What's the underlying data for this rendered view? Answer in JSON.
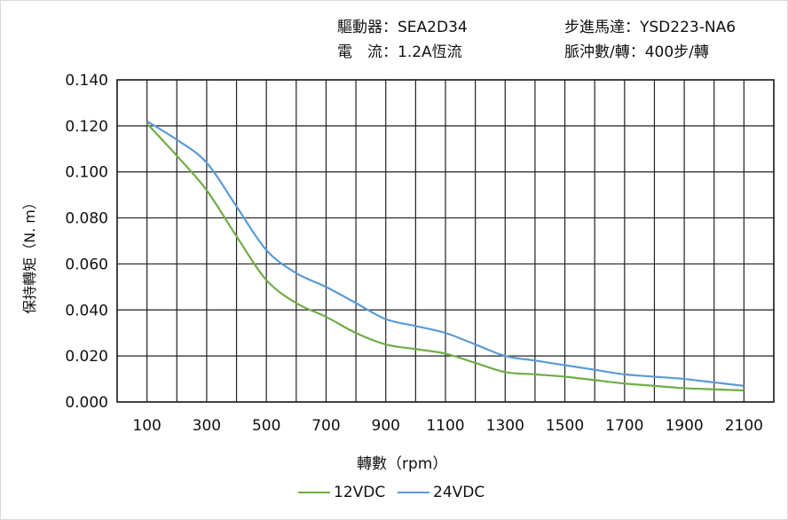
{
  "info": {
    "driver": "驅動器：SEA2D34",
    "motor": "步進馬達：YSD223-NA6",
    "current": "電　流：1.2A恆流",
    "pulses": "脈沖數/轉：400步/轉"
  },
  "chart_data": {
    "type": "line",
    "title": "",
    "xlabel": "轉數（rpm）",
    "ylabel": "保持轉矩（N. m）",
    "xlim": [
      0,
      2200
    ],
    "ylim": [
      0,
      0.14
    ],
    "grid": true,
    "legend": "bottom",
    "x_ticks": [
      "100",
      "300",
      "500",
      "700",
      "900",
      "1100",
      "1300",
      "1500",
      "1700",
      "1900",
      "2100"
    ],
    "y_ticks": [
      "0.000",
      "0.020",
      "0.040",
      "0.060",
      "0.080",
      "0.100",
      "0.120",
      "0.140"
    ],
    "x": [
      100,
      200,
      300,
      400,
      500,
      600,
      700,
      800,
      900,
      1000,
      1100,
      1200,
      1300,
      1400,
      1500,
      1600,
      1700,
      1800,
      1900,
      2000,
      2100
    ],
    "series": [
      {
        "name": "12VDC",
        "color": "#70ad47",
        "values": [
          0.121,
          0.107,
          0.092,
          0.072,
          0.053,
          0.043,
          0.037,
          0.03,
          0.025,
          0.023,
          0.021,
          0.017,
          0.013,
          0.012,
          0.011,
          0.0095,
          0.008,
          0.007,
          0.006,
          0.0055,
          0.005
        ]
      },
      {
        "name": "24VDC",
        "color": "#5b9bd5",
        "values": [
          0.122,
          0.114,
          0.104,
          0.085,
          0.066,
          0.056,
          0.05,
          0.043,
          0.036,
          0.033,
          0.03,
          0.025,
          0.02,
          0.018,
          0.016,
          0.014,
          0.012,
          0.011,
          0.01,
          0.0085,
          0.007
        ]
      }
    ]
  }
}
